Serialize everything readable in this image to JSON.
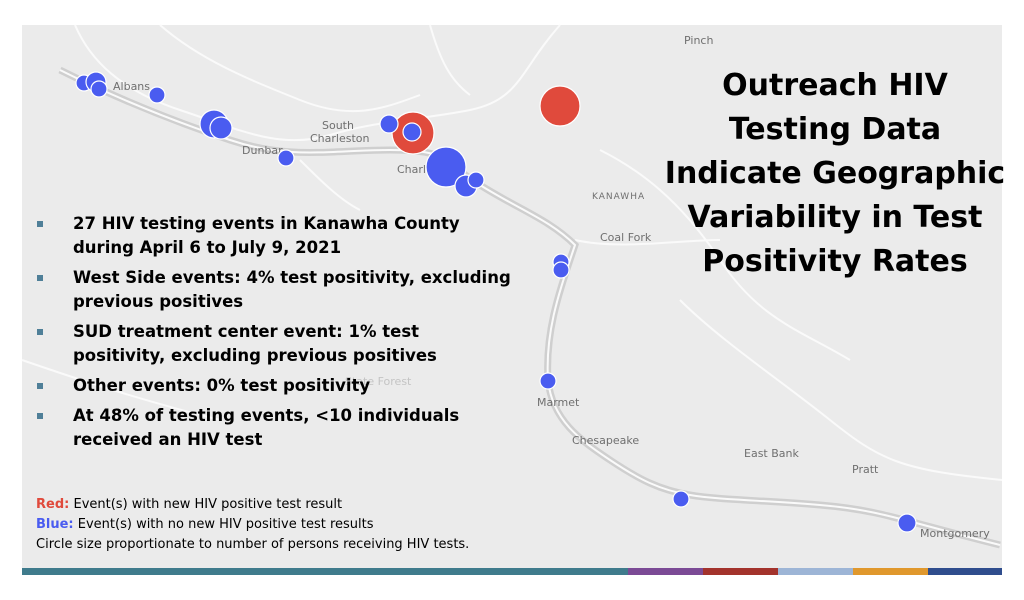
{
  "title": {
    "lines": [
      "Outreach HIV",
      "Testing Data",
      "Indicate Geographic",
      "Variability in Test",
      "Positivity Rates"
    ]
  },
  "bullets": [
    {
      "lines": [
        "27 HIV testing events in Kanawha County",
        "during April 6 to July 9, 2021"
      ]
    },
    {
      "lines": [
        "West Side events: 4% test positivity, excluding",
        "previous positives"
      ]
    },
    {
      "lines": [
        "SUD treatment center event: 1% test",
        "positivity, excluding previous positives"
      ]
    },
    {
      "lines": [
        "Other events: 0% test positivity"
      ]
    },
    {
      "lines": [
        "At 48% of testing events, <10 individuals",
        "received an HIV test"
      ]
    }
  ],
  "legend": [
    {
      "label": "Red:",
      "text": " Event(s) with new HIV positive test result"
    },
    {
      "label": "Blue:",
      "text": " Event(s) with no new HIV positive test results"
    },
    {
      "text": "Circle size proportionate to number of persons receiving HIV tests."
    }
  ],
  "places": [
    "Albans",
    "Dunbar",
    "South",
    "Charleston",
    "Charleston",
    "Pinch",
    "KANAWHA",
    "Coal Fork",
    "State Forest",
    "Marmet",
    "Chesapeake",
    "East Bank",
    "Pratt",
    "Montgomery"
  ]
}
